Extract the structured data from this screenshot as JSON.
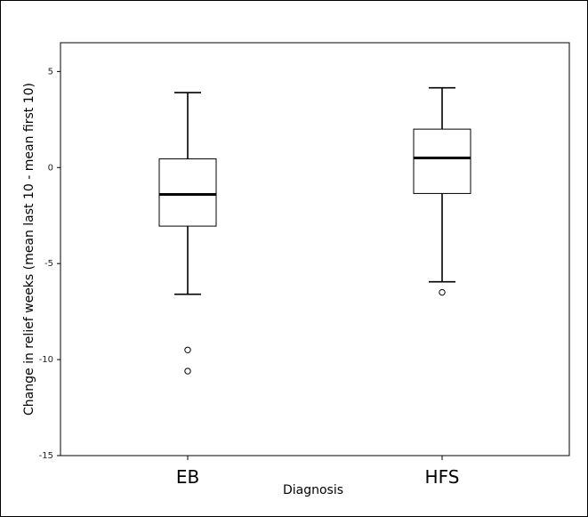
{
  "chart_data": {
    "type": "boxplot",
    "title": "",
    "xlabel": "Diagnosis",
    "ylabel": "Change in relief weeks (mean last 10 - mean first 10)",
    "ylim": [
      -15,
      6.5
    ],
    "yticks": [
      5,
      0,
      -5,
      -10,
      -15
    ],
    "ytick_labels": [
      "5",
      "0",
      "-5",
      "-10",
      "-15"
    ],
    "categories": [
      "EB",
      "HFS"
    ],
    "boxes": [
      {
        "category": "EB",
        "whisker_low": -6.6,
        "q1": -3.05,
        "median": -1.4,
        "q3": 0.45,
        "whisker_high": 3.9,
        "outliers": [
          -9.5,
          -10.6
        ]
      },
      {
        "category": "HFS",
        "whisker_low": -5.95,
        "q1": -1.35,
        "median": 0.5,
        "q3": 2.0,
        "whisker_high": 4.15,
        "outliers": [
          -6.5
        ]
      }
    ],
    "grid": false
  }
}
